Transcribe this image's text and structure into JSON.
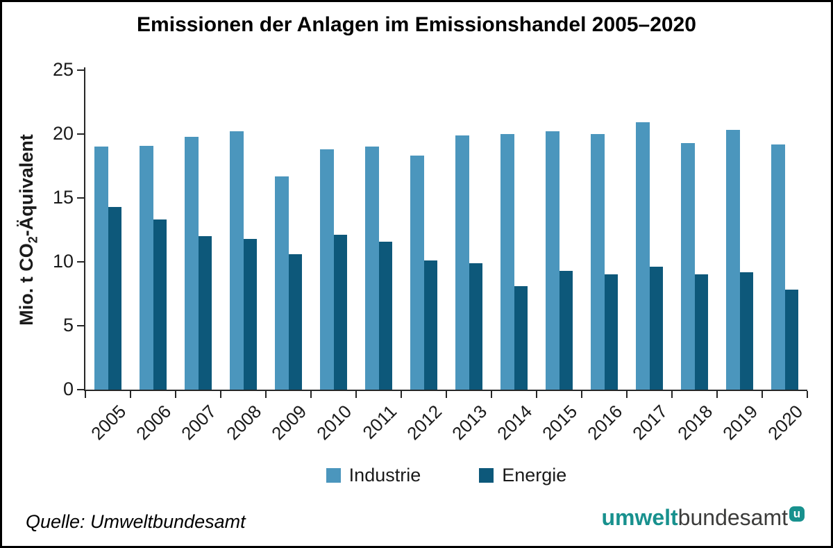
{
  "chart_data": {
    "type": "bar",
    "title": "Emissionen der Anlagen im Emissionshandel 2005–2020",
    "ylabel_parts": {
      "pre": "Mio. t CO",
      "sub": "2",
      "post": "-Äquivalent"
    },
    "xlabel": "",
    "categories": [
      "2005",
      "2006",
      "2007",
      "2008",
      "2009",
      "2010",
      "2011",
      "2012",
      "2013",
      "2014",
      "2015",
      "2016",
      "2017",
      "2018",
      "2019",
      "2020"
    ],
    "series": [
      {
        "name": "Industrie",
        "color": "#4B96BD",
        "values": [
          19.0,
          19.1,
          19.8,
          20.2,
          16.7,
          18.8,
          19.0,
          18.3,
          19.9,
          20.0,
          20.2,
          20.0,
          20.9,
          19.3,
          20.3,
          19.2
        ]
      },
      {
        "name": "Energie",
        "color": "#0D587A",
        "values": [
          14.3,
          13.3,
          12.0,
          11.8,
          10.6,
          12.1,
          11.6,
          10.1,
          9.9,
          8.1,
          9.3,
          9.0,
          9.6,
          9.0,
          9.2,
          7.8
        ]
      }
    ],
    "ylim": [
      0,
      25
    ],
    "yticks": [
      0,
      5,
      10,
      15,
      20,
      25
    ],
    "grid": false,
    "legend_position": "bottom"
  },
  "footer": {
    "source": "Quelle: Umweltbundesamt",
    "logo": {
      "part1": "umwelt",
      "part2": "bundesamt",
      "badge": "u",
      "teal_color": "#18918E",
      "dark_color": "#3C3C3B"
    }
  }
}
